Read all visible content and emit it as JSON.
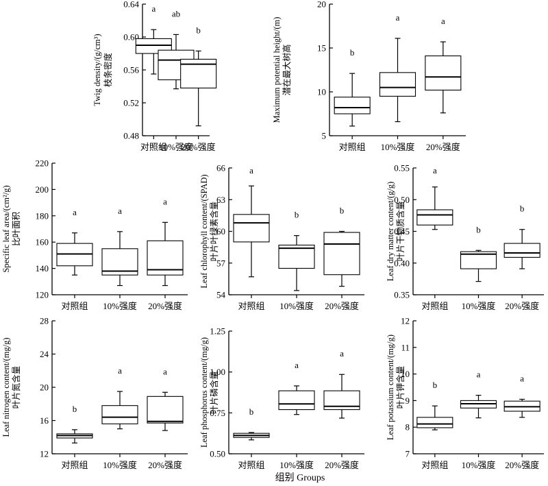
{
  "figure": {
    "xlabel": "组别 Groups"
  },
  "chart_data": [
    {
      "type": "box",
      "ylabel_zh": "枝条密度",
      "ylabel_en": "Twig density/(g/cm³)",
      "ylim": [
        0.48,
        0.64
      ],
      "yticks": [
        "0.48",
        "0.52",
        "0.56",
        "0.60",
        "0.64"
      ],
      "categories": [
        "对照组",
        "10%强度",
        "20%强度"
      ],
      "boxes": [
        {
          "min": 0.555,
          "q1": 0.58,
          "median": 0.59,
          "q3": 0.598,
          "max": 0.609,
          "sig": "a"
        },
        {
          "min": 0.537,
          "q1": 0.548,
          "median": 0.572,
          "q3": 0.584,
          "max": 0.603,
          "sig": "ab"
        },
        {
          "min": 0.492,
          "q1": 0.538,
          "median": 0.567,
          "q3": 0.573,
          "max": 0.583,
          "sig": "b"
        }
      ]
    },
    {
      "type": "box",
      "ylabel_zh": "潜在最大树高",
      "ylabel_en": "Maximum potential height/(m)",
      "ylim": [
        5,
        20
      ],
      "yticks": [
        "5",
        "10",
        "15",
        "20"
      ],
      "categories": [
        "对照组",
        "10%强度",
        "20%强度"
      ],
      "boxes": [
        {
          "min": 6.1,
          "q1": 7.5,
          "median": 8.2,
          "q3": 9.4,
          "max": 12.1,
          "sig": "b"
        },
        {
          "min": 6.6,
          "q1": 9.5,
          "median": 10.5,
          "q3": 12.2,
          "max": 16.1,
          "sig": "a"
        },
        {
          "min": 7.6,
          "q1": 10.2,
          "median": 11.7,
          "q3": 14.1,
          "max": 15.7,
          "sig": "a"
        }
      ]
    },
    {
      "type": "box",
      "ylabel_zh": "比叶面积",
      "ylabel_en": "Specific leaf area/(cm²/g)",
      "ylim": [
        120,
        220
      ],
      "yticks": [
        "120",
        "140",
        "160",
        "180",
        "200",
        "220"
      ],
      "categories": [
        "对照组",
        "10%强度",
        "20%强度"
      ],
      "boxes": [
        {
          "min": 135,
          "q1": 142,
          "median": 151,
          "q3": 159,
          "max": 167,
          "sig": "a"
        },
        {
          "min": 127,
          "q1": 135,
          "median": 138,
          "q3": 155,
          "max": 168,
          "sig": "a"
        },
        {
          "min": 127,
          "q1": 135,
          "median": 139,
          "q3": 161,
          "max": 175,
          "sig": "a"
        }
      ]
    },
    {
      "type": "box",
      "ylabel_zh": "叶片叶绿素含量",
      "ylabel_en": "Leaf chlorophyll content/(SPAD)",
      "ylim": [
        54,
        66
      ],
      "yticks": [
        "54",
        "57",
        "60",
        "63",
        "66"
      ],
      "categories": [
        "对照组",
        "10%强度",
        "20%强度"
      ],
      "boxes": [
        {
          "min": 55.7,
          "q1": 59.0,
          "median": 60.8,
          "q3": 61.6,
          "max": 64.3,
          "sig": "a"
        },
        {
          "min": 54.4,
          "q1": 56.5,
          "median": 58.4,
          "q3": 58.7,
          "max": 59.6,
          "sig": "b"
        },
        {
          "min": 54.8,
          "q1": 55.9,
          "median": 58.8,
          "q3": 59.9,
          "max": 60.0,
          "sig": "b"
        }
      ]
    },
    {
      "type": "box",
      "ylabel_zh": "叶片干物质含量",
      "ylabel_en": "Leaf dry matter content/(g/g)",
      "ylim": [
        0.35,
        0.55
      ],
      "yticks": [
        "0.35",
        "0.40",
        "0.45",
        "0.50",
        "0.55"
      ],
      "categories": [
        "对照组",
        "10%强度",
        "20%强度"
      ],
      "boxes": [
        {
          "min": 0.453,
          "q1": 0.46,
          "median": 0.476,
          "q3": 0.484,
          "max": 0.52,
          "sig": "a"
        },
        {
          "min": 0.371,
          "q1": 0.391,
          "median": 0.414,
          "q3": 0.418,
          "max": 0.42,
          "sig": "b"
        },
        {
          "min": 0.391,
          "q1": 0.409,
          "median": 0.416,
          "q3": 0.431,
          "max": 0.453,
          "sig": "b"
        }
      ]
    },
    {
      "type": "box",
      "ylabel_zh": "叶片氮含量",
      "ylabel_en": "Leaf nitrogen content/(mg/g)",
      "ylim": [
        12,
        28
      ],
      "yticks": [
        "12",
        "16",
        "20",
        "24",
        "28"
      ],
      "categories": [
        "对照组",
        "10%强度",
        "20%强度"
      ],
      "boxes": [
        {
          "min": 13.3,
          "q1": 13.9,
          "median": 14.2,
          "q3": 14.4,
          "max": 14.9,
          "sig": "b"
        },
        {
          "min": 15.0,
          "q1": 15.6,
          "median": 16.4,
          "q3": 17.8,
          "max": 19.5,
          "sig": "a"
        },
        {
          "min": 14.8,
          "q1": 15.7,
          "median": 15.9,
          "q3": 18.9,
          "max": 19.4,
          "sig": "a"
        }
      ]
    },
    {
      "type": "box",
      "ylabel_zh": "叶片磷含量",
      "ylabel_en": "Leaf phosphorus content/(mg/g)",
      "ylim": [
        0.5,
        1.25
      ],
      "yticks": [
        "0.50",
        "0.75",
        "1.00",
        "1.25"
      ],
      "categories": [
        "对照组",
        "10%强度",
        "20%强度"
      ],
      "boxes": [
        {
          "min": 0.585,
          "q1": 0.6,
          "median": 0.612,
          "q3": 0.625,
          "max": 0.63,
          "sig": "b"
        },
        {
          "min": 0.74,
          "q1": 0.77,
          "median": 0.805,
          "q3": 0.885,
          "max": 0.915,
          "sig": "a"
        },
        {
          "min": 0.718,
          "q1": 0.77,
          "median": 0.79,
          "q3": 0.885,
          "max": 0.985,
          "sig": "a"
        }
      ]
    },
    {
      "type": "box",
      "ylabel_zh": "叶片钾含量",
      "ylabel_en": "Leaf potassium content/(mg/g)",
      "ylim": [
        7,
        12
      ],
      "yticks": [
        "7",
        "8",
        "9",
        "10",
        "11",
        "12"
      ],
      "categories": [
        "对照组",
        "10%强度",
        "20%强度"
      ],
      "boxes": [
        {
          "min": 7.9,
          "q1": 7.98,
          "median": 8.12,
          "q3": 8.37,
          "max": 8.8,
          "sig": "b"
        },
        {
          "min": 8.35,
          "q1": 8.72,
          "median": 8.88,
          "q3": 9.0,
          "max": 9.2,
          "sig": "a"
        },
        {
          "min": 8.37,
          "q1": 8.6,
          "median": 8.77,
          "q3": 8.98,
          "max": 9.05,
          "sig": "a"
        }
      ]
    }
  ]
}
